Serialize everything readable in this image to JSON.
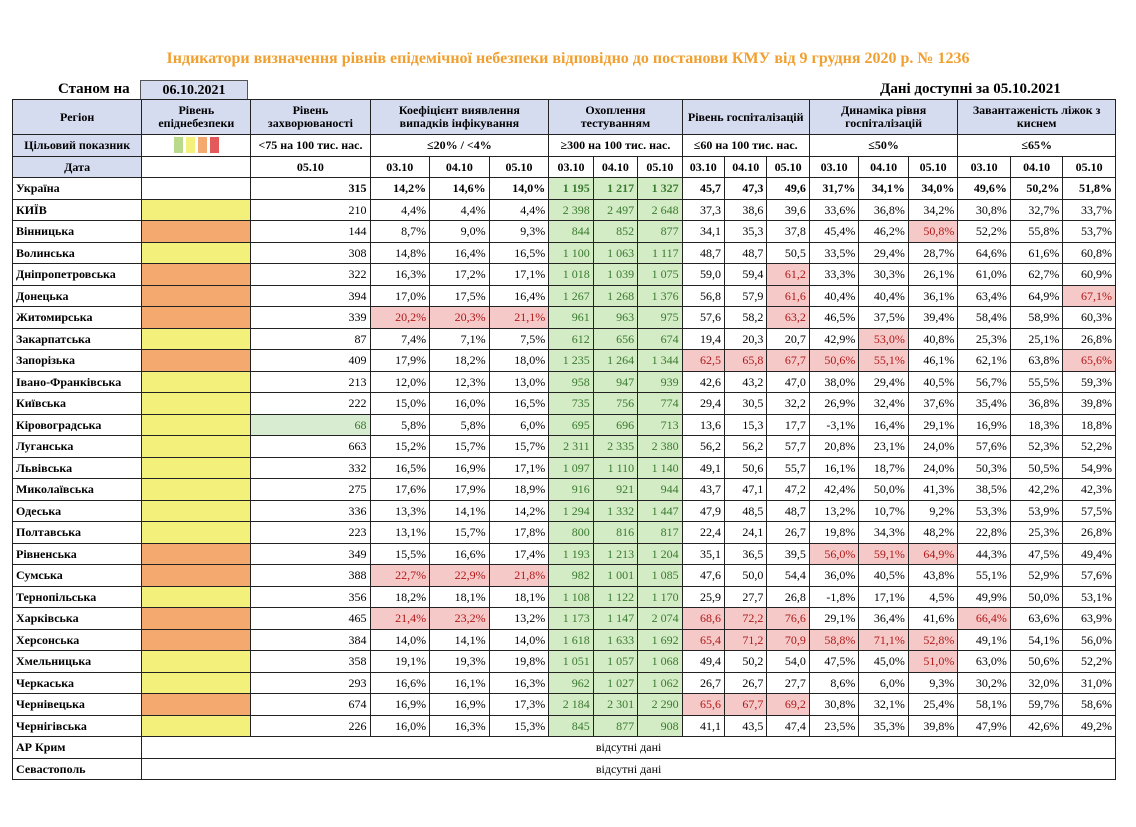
{
  "title": "Індикатори визначення рівнів епідемічної небезпеки відповідно до постанови КМУ від 9 грудня 2020 р. № 1236",
  "as_of_label": "Станом на",
  "as_of_date": "06.10.2021",
  "data_available": "Дані доступні за  05.10.2021",
  "headers": {
    "region": "Регіон",
    "level": "Рівень епіднебезпеки",
    "incidence": "Рівень захворюваності",
    "detection": "Коефіцієнт виявлення випадків інфікування",
    "testing": "Охоплення тестуванням",
    "hospitalization": "Рівень госпіталізацій",
    "dynamics": "Динаміка рівня госпіталізацій",
    "oxygen": "Завантаженість ліжок з киснем"
  },
  "targets": {
    "label": "Цільовий показник",
    "incidence": "<75 на 100 тис. нас.",
    "detection": "≤20% / <4%",
    "testing": "≥300 на 100 тис. нас.",
    "hospitalization": "≤60 на 100 тис. нас.",
    "dynamics": "≤50%",
    "oxygen": "≤65%"
  },
  "legend_colors": [
    "#b9d98b",
    "#f4f07c",
    "#f4aa6e",
    "#e45a5a"
  ],
  "dates": {
    "label": "Дата",
    "incidence": [
      "05.10"
    ],
    "triple": [
      "03.10",
      "04.10",
      "05.10"
    ]
  },
  "rows": [
    {
      "name": "Україна",
      "level": "",
      "inc": "315",
      "det": [
        "14,2%",
        "14,6%",
        "14,0%"
      ],
      "test": [
        "1 195",
        "1 217",
        "1 327"
      ],
      "hosp": [
        "45,7",
        "47,3",
        "49,6"
      ],
      "dyn": [
        "31,7%",
        "34,1%",
        "34,0%"
      ],
      "oxy": [
        "49,6%",
        "50,2%",
        "51,8%"
      ]
    },
    {
      "name": "КИЇВ",
      "level": "yellow",
      "inc": "210",
      "det": [
        "4,4%",
        "4,4%",
        "4,4%"
      ],
      "test": [
        "2 398",
        "2 497",
        "2 648"
      ],
      "hosp": [
        "37,3",
        "38,6",
        "39,6"
      ],
      "dyn": [
        "33,6%",
        "36,8%",
        "34,2%"
      ],
      "oxy": [
        "30,8%",
        "32,7%",
        "33,7%"
      ]
    },
    {
      "name": "Вінницька",
      "level": "orange",
      "inc": "144",
      "det": [
        "8,7%",
        "9,0%",
        "9,3%"
      ],
      "test": [
        "844",
        "852",
        "877"
      ],
      "hosp": [
        "34,1",
        "35,3",
        "37,8"
      ],
      "dyn": [
        "45,4%",
        "46,2%",
        "50,8%"
      ],
      "oxy": [
        "52,2%",
        "55,8%",
        "53,7%"
      ]
    },
    {
      "name": "Волинська",
      "level": "yellow",
      "inc": "308",
      "det": [
        "14,8%",
        "16,4%",
        "16,5%"
      ],
      "test": [
        "1 100",
        "1 063",
        "1 117"
      ],
      "hosp": [
        "48,7",
        "48,7",
        "50,5"
      ],
      "dyn": [
        "33,5%",
        "29,4%",
        "28,7%"
      ],
      "oxy": [
        "64,6%",
        "61,6%",
        "60,8%"
      ]
    },
    {
      "name": "Дніпропетровська",
      "level": "orange",
      "inc": "322",
      "det": [
        "16,3%",
        "17,2%",
        "17,1%"
      ],
      "test": [
        "1 018",
        "1 039",
        "1 075"
      ],
      "hosp": [
        "59,0",
        "59,4",
        "61,2"
      ],
      "dyn": [
        "33,3%",
        "30,3%",
        "26,1%"
      ],
      "oxy": [
        "61,0%",
        "62,7%",
        "60,9%"
      ]
    },
    {
      "name": "Донецька",
      "level": "orange",
      "inc": "394",
      "det": [
        "17,0%",
        "17,5%",
        "16,4%"
      ],
      "test": [
        "1 267",
        "1 268",
        "1 376"
      ],
      "hosp": [
        "56,8",
        "57,9",
        "61,6"
      ],
      "dyn": [
        "40,4%",
        "40,4%",
        "36,1%"
      ],
      "oxy": [
        "63,4%",
        "64,9%",
        "67,1%"
      ]
    },
    {
      "name": "Житомирська",
      "level": "orange",
      "inc": "339",
      "det": [
        "20,2%",
        "20,3%",
        "21,1%"
      ],
      "test": [
        "961",
        "963",
        "975"
      ],
      "hosp": [
        "57,6",
        "58,2",
        "63,2"
      ],
      "dyn": [
        "46,5%",
        "37,5%",
        "39,4%"
      ],
      "oxy": [
        "58,4%",
        "58,9%",
        "60,3%"
      ]
    },
    {
      "name": "Закарпатська",
      "level": "yellow",
      "inc": "87",
      "det": [
        "7,4%",
        "7,1%",
        "7,5%"
      ],
      "test": [
        "612",
        "656",
        "674"
      ],
      "hosp": [
        "19,4",
        "20,3",
        "20,7"
      ],
      "dyn": [
        "42,9%",
        "53,0%",
        "40,8%"
      ],
      "oxy": [
        "25,3%",
        "25,1%",
        "26,8%"
      ]
    },
    {
      "name": "Запорізька",
      "level": "orange",
      "inc": "409",
      "det": [
        "17,9%",
        "18,2%",
        "18,0%"
      ],
      "test": [
        "1 235",
        "1 264",
        "1 344"
      ],
      "hosp": [
        "62,5",
        "65,8",
        "67,7"
      ],
      "dyn": [
        "50,6%",
        "55,1%",
        "46,1%"
      ],
      "oxy": [
        "62,1%",
        "63,8%",
        "65,6%"
      ]
    },
    {
      "name": "Івано-Франківська",
      "level": "yellow",
      "inc": "213",
      "det": [
        "12,0%",
        "12,3%",
        "13,0%"
      ],
      "test": [
        "958",
        "947",
        "939"
      ],
      "hosp": [
        "42,6",
        "43,2",
        "47,0"
      ],
      "dyn": [
        "38,0%",
        "29,4%",
        "40,5%"
      ],
      "oxy": [
        "56,7%",
        "55,5%",
        "59,3%"
      ]
    },
    {
      "name": "Київська",
      "level": "yellow",
      "inc": "222",
      "det": [
        "15,0%",
        "16,0%",
        "16,5%"
      ],
      "test": [
        "735",
        "756",
        "774"
      ],
      "hosp": [
        "29,4",
        "30,5",
        "32,2"
      ],
      "dyn": [
        "26,9%",
        "32,4%",
        "37,6%"
      ],
      "oxy": [
        "35,4%",
        "36,8%",
        "39,8%"
      ]
    },
    {
      "name": "Кіровоградська",
      "level": "yellow",
      "inc": "68",
      "det": [
        "5,8%",
        "5,8%",
        "6,0%"
      ],
      "test": [
        "695",
        "696",
        "713"
      ],
      "hosp": [
        "13,6",
        "15,3",
        "17,7"
      ],
      "dyn": [
        "-3,1%",
        "16,4%",
        "29,1%"
      ],
      "oxy": [
        "16,9%",
        "18,3%",
        "18,8%"
      ]
    },
    {
      "name": "Луганська",
      "level": "yellow",
      "inc": "663",
      "det": [
        "15,2%",
        "15,7%",
        "15,7%"
      ],
      "test": [
        "2 311",
        "2 335",
        "2 380"
      ],
      "hosp": [
        "56,2",
        "56,2",
        "57,7"
      ],
      "dyn": [
        "20,8%",
        "23,1%",
        "24,0%"
      ],
      "oxy": [
        "57,6%",
        "52,3%",
        "52,2%"
      ]
    },
    {
      "name": "Львівська",
      "level": "yellow",
      "inc": "332",
      "det": [
        "16,5%",
        "16,9%",
        "17,1%"
      ],
      "test": [
        "1 097",
        "1 110",
        "1 140"
      ],
      "hosp": [
        "49,1",
        "50,6",
        "55,7"
      ],
      "dyn": [
        "16,1%",
        "18,7%",
        "24,0%"
      ],
      "oxy": [
        "50,3%",
        "50,5%",
        "54,9%"
      ]
    },
    {
      "name": "Миколаївська",
      "level": "yellow",
      "inc": "275",
      "det": [
        "17,6%",
        "17,9%",
        "18,9%"
      ],
      "test": [
        "916",
        "921",
        "944"
      ],
      "hosp": [
        "43,7",
        "47,1",
        "47,2"
      ],
      "dyn": [
        "42,4%",
        "50,0%",
        "41,3%"
      ],
      "oxy": [
        "38,5%",
        "42,2%",
        "42,3%"
      ]
    },
    {
      "name": "Одеська",
      "level": "yellow",
      "inc": "336",
      "det": [
        "13,3%",
        "14,1%",
        "14,2%"
      ],
      "test": [
        "1 294",
        "1 332",
        "1 447"
      ],
      "hosp": [
        "47,9",
        "48,5",
        "48,7"
      ],
      "dyn": [
        "13,2%",
        "10,7%",
        "9,2%"
      ],
      "oxy": [
        "53,3%",
        "53,9%",
        "57,5%"
      ]
    },
    {
      "name": "Полтавська",
      "level": "yellow",
      "inc": "223",
      "det": [
        "13,1%",
        "15,7%",
        "17,8%"
      ],
      "test": [
        "800",
        "816",
        "817"
      ],
      "hosp": [
        "22,4",
        "24,1",
        "26,7"
      ],
      "dyn": [
        "19,8%",
        "34,3%",
        "48,2%"
      ],
      "oxy": [
        "22,8%",
        "25,3%",
        "26,8%"
      ]
    },
    {
      "name": "Рівненська",
      "level": "orange",
      "inc": "349",
      "det": [
        "15,5%",
        "16,6%",
        "17,4%"
      ],
      "test": [
        "1 193",
        "1 213",
        "1 204"
      ],
      "hosp": [
        "35,1",
        "36,5",
        "39,5"
      ],
      "dyn": [
        "56,0%",
        "59,1%",
        "64,9%"
      ],
      "oxy": [
        "44,3%",
        "47,5%",
        "49,4%"
      ]
    },
    {
      "name": "Сумська",
      "level": "orange",
      "inc": "388",
      "det": [
        "22,7%",
        "22,9%",
        "21,8%"
      ],
      "test": [
        "982",
        "1 001",
        "1 085"
      ],
      "hosp": [
        "47,6",
        "50,0",
        "54,4"
      ],
      "dyn": [
        "36,0%",
        "40,5%",
        "43,8%"
      ],
      "oxy": [
        "55,1%",
        "52,9%",
        "57,6%"
      ]
    },
    {
      "name": "Тернопільська",
      "level": "yellow",
      "inc": "356",
      "det": [
        "18,2%",
        "18,1%",
        "18,1%"
      ],
      "test": [
        "1 108",
        "1 122",
        "1 170"
      ],
      "hosp": [
        "25,9",
        "27,7",
        "26,8"
      ],
      "dyn": [
        "-1,8%",
        "17,1%",
        "4,5%"
      ],
      "oxy": [
        "49,9%",
        "50,0%",
        "53,1%"
      ]
    },
    {
      "name": "Харківська",
      "level": "orange",
      "inc": "465",
      "det": [
        "21,4%",
        "23,2%",
        "13,2%"
      ],
      "test": [
        "1 173",
        "1 147",
        "2 074"
      ],
      "hosp": [
        "68,6",
        "72,2",
        "76,6"
      ],
      "dyn": [
        "29,1%",
        "36,4%",
        "41,6%"
      ],
      "oxy": [
        "66,4%",
        "63,6%",
        "63,9%"
      ]
    },
    {
      "name": "Херсонська",
      "level": "orange",
      "inc": "384",
      "det": [
        "14,0%",
        "14,1%",
        "14,0%"
      ],
      "test": [
        "1 618",
        "1 633",
        "1 692"
      ],
      "hosp": [
        "65,4",
        "71,2",
        "70,9"
      ],
      "dyn": [
        "58,8%",
        "71,1%",
        "52,8%"
      ],
      "oxy": [
        "49,1%",
        "54,1%",
        "56,0%"
      ]
    },
    {
      "name": "Хмельницька",
      "level": "yellow",
      "inc": "358",
      "det": [
        "19,1%",
        "19,3%",
        "19,8%"
      ],
      "test": [
        "1 051",
        "1 057",
        "1 068"
      ],
      "hosp": [
        "49,4",
        "50,2",
        "54,0"
      ],
      "dyn": [
        "47,5%",
        "45,0%",
        "51,0%"
      ],
      "oxy": [
        "63,0%",
        "50,6%",
        "52,2%"
      ]
    },
    {
      "name": "Черкаська",
      "level": "yellow",
      "inc": "293",
      "det": [
        "16,6%",
        "16,1%",
        "16,3%"
      ],
      "test": [
        "962",
        "1 027",
        "1 062"
      ],
      "hosp": [
        "26,7",
        "26,7",
        "27,7"
      ],
      "dyn": [
        "8,6%",
        "6,0%",
        "9,3%"
      ],
      "oxy": [
        "30,2%",
        "32,0%",
        "31,0%"
      ]
    },
    {
      "name": "Чернівецька",
      "level": "orange",
      "inc": "674",
      "det": [
        "16,9%",
        "16,9%",
        "17,3%"
      ],
      "test": [
        "2 184",
        "2 301",
        "2 290"
      ],
      "hosp": [
        "65,6",
        "67,7",
        "69,2"
      ],
      "dyn": [
        "30,8%",
        "32,1%",
        "25,4%"
      ],
      "oxy": [
        "58,1%",
        "59,7%",
        "58,6%"
      ]
    },
    {
      "name": "Чернігівська",
      "level": "yellow",
      "inc": "226",
      "det": [
        "16,0%",
        "16,3%",
        "15,3%"
      ],
      "test": [
        "845",
        "877",
        "908"
      ],
      "hosp": [
        "41,1",
        "43,5",
        "47,4"
      ],
      "dyn": [
        "23,5%",
        "35,3%",
        "39,8%"
      ],
      "oxy": [
        "47,9%",
        "42,6%",
        "49,2%"
      ]
    }
  ],
  "no_data_rows": [
    {
      "name": "АР Крим",
      "text": "відсутні дані"
    },
    {
      "name": "Севастополь",
      "text": "відсутні дані"
    }
  ],
  "red_cells": {
    "Вінницька": [
      "dyn.2"
    ],
    "Дніпропетровська": [
      "hosp.2"
    ],
    "Донецька": [
      "hosp.2",
      "oxy.2"
    ],
    "Житомирська": [
      "det.0",
      "det.1",
      "det.2",
      "hosp.2"
    ],
    "Закарпатська": [
      "dyn.1"
    ],
    "Запорізька": [
      "hosp.0",
      "hosp.1",
      "hosp.2",
      "dyn.0",
      "dyn.1",
      "oxy.2"
    ],
    "Рівненська": [
      "dyn.0",
      "dyn.1",
      "dyn.2"
    ],
    "Сумська": [
      "det.0",
      "det.1",
      "det.2"
    ],
    "Харківська": [
      "det.0",
      "det.1",
      "hosp.0",
      "hosp.1",
      "hosp.2",
      "oxy.0"
    ],
    "Херсонська": [
      "hosp.0",
      "hosp.1",
      "hosp.2",
      "dyn.0",
      "dyn.1",
      "dyn.2"
    ],
    "Хмельницька": [
      "dyn.2"
    ],
    "Чернівецька": [
      "hosp.0",
      "hosp.1",
      "hosp.2"
    ]
  },
  "green_incidence": [
    "Кіровоградська"
  ]
}
